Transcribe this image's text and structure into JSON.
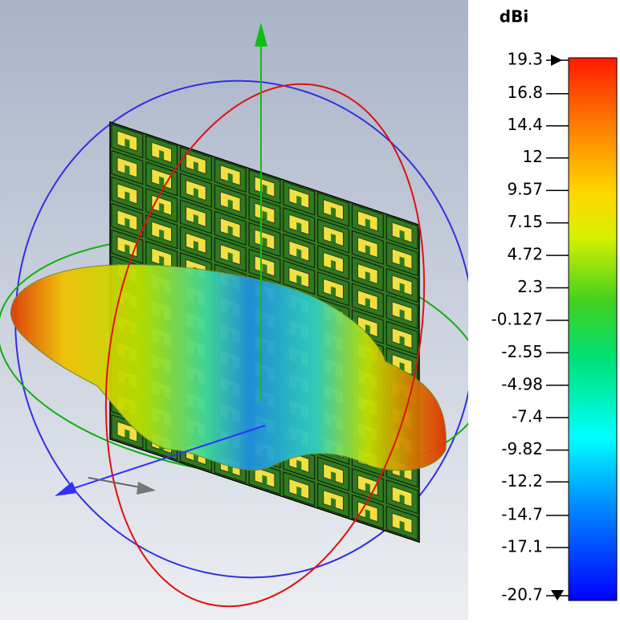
{
  "colorbar": {
    "unit": "dBi",
    "ticks": [
      19.3,
      16.8,
      14.4,
      12,
      9.57,
      7.15,
      4.72,
      2.3,
      -0.127,
      -2.55,
      -4.98,
      -7.4,
      -9.82,
      -12.2,
      -14.7,
      -17.1,
      -20.7
    ]
  }
}
